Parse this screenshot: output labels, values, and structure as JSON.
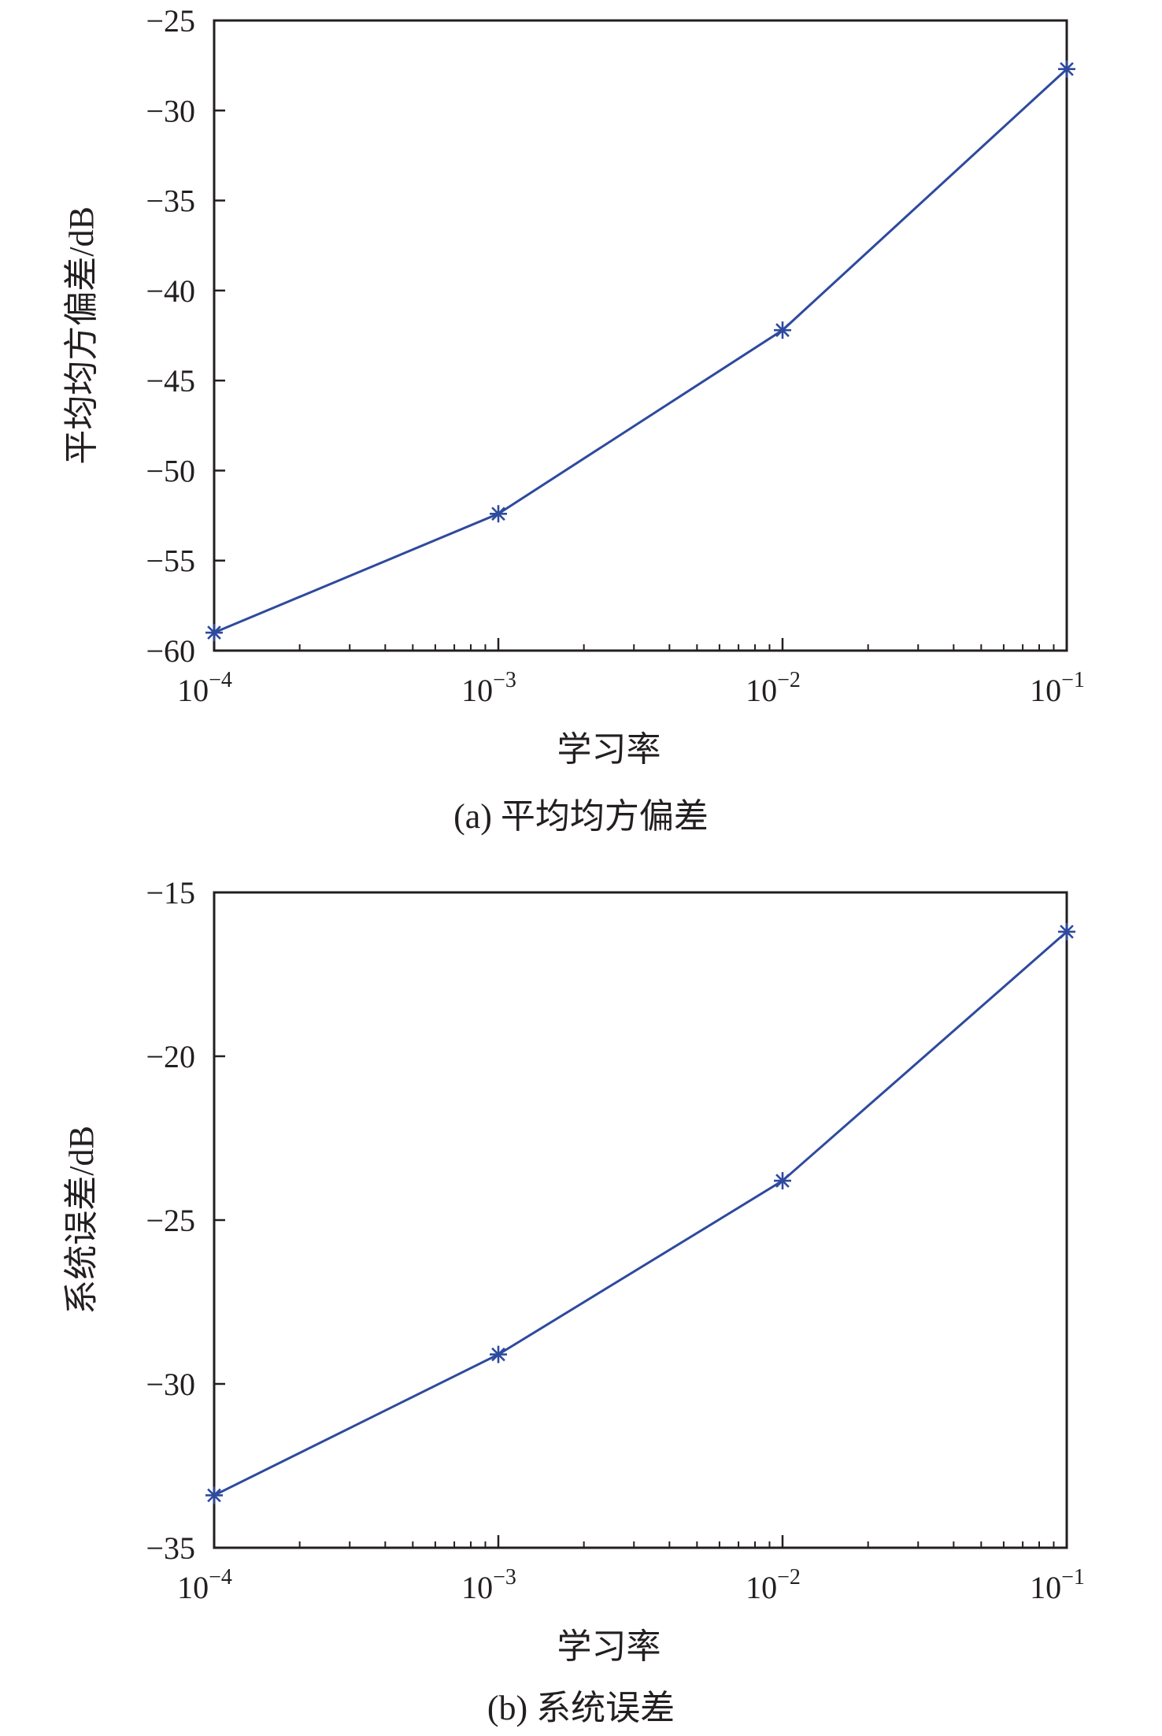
{
  "colors": {
    "series": "#2e4a9e",
    "axis": "#231f20"
  },
  "chart_data": [
    {
      "type": "line",
      "caption": "(a) 平均均方偏差",
      "xlabel": "学习率",
      "ylabel": "平均均方偏差/dB",
      "xscale": "log",
      "xlim": [
        0.0001,
        0.1
      ],
      "ylim": [
        -60,
        -25
      ],
      "yticks": [
        -25,
        -30,
        -35,
        -40,
        -45,
        -50,
        -55,
        -60
      ],
      "xticks": [
        {
          "base": "10",
          "exp": "−4",
          "value": 0.0001
        },
        {
          "base": "10",
          "exp": "−3",
          "value": 0.001
        },
        {
          "base": "10",
          "exp": "−2",
          "value": 0.01
        },
        {
          "base": "10",
          "exp": "−1",
          "value": 0.1
        }
      ],
      "marker": "asterisk",
      "grid": false,
      "series": [
        {
          "x": [
            0.0001,
            0.001,
            0.01,
            0.1
          ],
          "values": [
            -59.0,
            -52.4,
            -42.2,
            -27.7
          ]
        }
      ]
    },
    {
      "type": "line",
      "caption": "(b) 系统误差",
      "xlabel": "学习率",
      "ylabel": "系统误差/dB",
      "xscale": "log",
      "xlim": [
        0.0001,
        0.1
      ],
      "ylim": [
        -35,
        -15
      ],
      "yticks": [
        -15,
        -20,
        -25,
        -30,
        -35
      ],
      "xticks": [
        {
          "base": "10",
          "exp": "−4",
          "value": 0.0001
        },
        {
          "base": "10",
          "exp": "−3",
          "value": 0.001
        },
        {
          "base": "10",
          "exp": "−2",
          "value": 0.01
        },
        {
          "base": "10",
          "exp": "−1",
          "value": 0.1
        }
      ],
      "marker": "asterisk",
      "grid": false,
      "series": [
        {
          "x": [
            0.0001,
            0.001,
            0.01,
            0.1
          ],
          "values": [
            -33.4,
            -29.1,
            -23.8,
            -16.2
          ]
        }
      ]
    }
  ]
}
